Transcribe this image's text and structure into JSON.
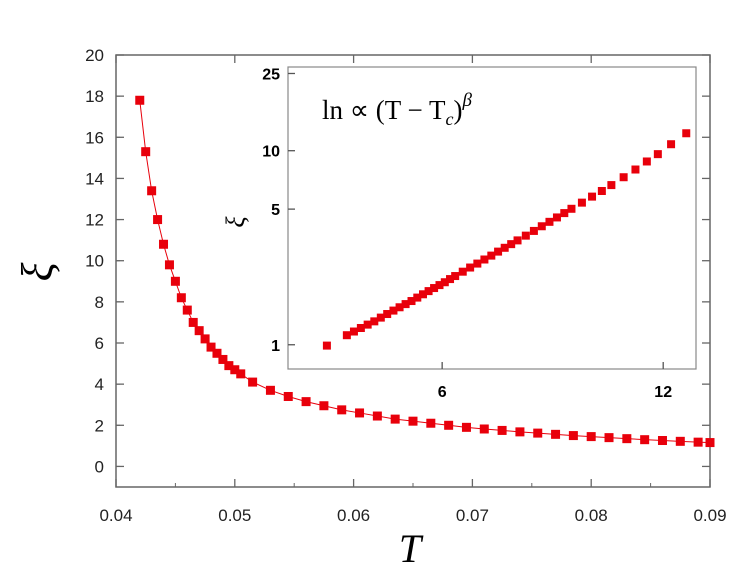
{
  "chart_data": [
    {
      "type": "line",
      "xlabel": "T",
      "ylabel": "ξ",
      "xlim": [
        0.04,
        0.09
      ],
      "ylim": [
        -1,
        20
      ],
      "xticks": [
        "0.04",
        "0.05",
        "0.06",
        "0.07",
        "0.08",
        "0.09"
      ],
      "yticks": [
        "0",
        "2",
        "4",
        "6",
        "8",
        "10",
        "12",
        "14",
        "16",
        "18",
        "20"
      ],
      "marker": "square",
      "color": "#e8000b",
      "grid": false,
      "x": [
        0.042,
        0.0425,
        0.043,
        0.0435,
        0.044,
        0.0445,
        0.045,
        0.0455,
        0.046,
        0.0465,
        0.047,
        0.0475,
        0.048,
        0.0485,
        0.049,
        0.0495,
        0.05,
        0.0505,
        0.0515,
        0.053,
        0.0545,
        0.056,
        0.0575,
        0.059,
        0.0605,
        0.062,
        0.0635,
        0.065,
        0.0665,
        0.068,
        0.0695,
        0.071,
        0.0725,
        0.074,
        0.0755,
        0.077,
        0.0785,
        0.08,
        0.0815,
        0.083,
        0.0845,
        0.086,
        0.0875,
        0.089,
        0.09
      ],
      "y": [
        17.8,
        15.3,
        13.4,
        12.0,
        10.8,
        9.8,
        9.0,
        8.2,
        7.6,
        7.0,
        6.6,
        6.2,
        5.8,
        5.5,
        5.2,
        4.9,
        4.7,
        4.5,
        4.1,
        3.7,
        3.4,
        3.15,
        2.95,
        2.75,
        2.6,
        2.45,
        2.3,
        2.2,
        2.1,
        2.0,
        1.9,
        1.82,
        1.75,
        1.68,
        1.62,
        1.56,
        1.5,
        1.45,
        1.4,
        1.35,
        1.3,
        1.26,
        1.22,
        1.18,
        1.16
      ]
    },
    {
      "type": "scatter",
      "annotation": "ln ∝ (T − T",
      "annotation_sub": "c",
      "annotation_sup": "β",
      "xlabel": "",
      "ylabel": "ξ",
      "xscale": "log",
      "yscale": "log",
      "xlim": [
        3.7,
        13.3
      ],
      "ylim": [
        0.75,
        27
      ],
      "xticks": [
        "6",
        "12"
      ],
      "yticks": [
        "1",
        "5",
        "10",
        "25"
      ],
      "marker": "square",
      "color": "#e8000b",
      "grid": false,
      "x": [
        4.18,
        4.45,
        4.55,
        4.65,
        4.75,
        4.85,
        4.95,
        5.05,
        5.15,
        5.25,
        5.35,
        5.45,
        5.55,
        5.65,
        5.75,
        5.85,
        5.95,
        6.05,
        6.15,
        6.25,
        6.4,
        6.55,
        6.7,
        6.85,
        7.0,
        7.15,
        7.3,
        7.45,
        7.6,
        7.8,
        8.0,
        8.2,
        8.4,
        8.6,
        8.8,
        9.0,
        9.3,
        9.6,
        9.9,
        10.2,
        10.6,
        11.0,
        11.4,
        11.8,
        12.3,
        12.9
      ],
      "y": [
        0.99,
        1.12,
        1.17,
        1.22,
        1.27,
        1.32,
        1.38,
        1.44,
        1.5,
        1.56,
        1.62,
        1.68,
        1.75,
        1.82,
        1.89,
        1.96,
        2.03,
        2.1,
        2.18,
        2.26,
        2.38,
        2.5,
        2.62,
        2.75,
        2.88,
        3.02,
        3.16,
        3.3,
        3.45,
        3.65,
        3.86,
        4.08,
        4.3,
        4.53,
        4.77,
        5.02,
        5.4,
        5.8,
        6.2,
        6.65,
        7.3,
        8.0,
        8.8,
        9.6,
        10.8,
        12.3
      ]
    }
  ]
}
